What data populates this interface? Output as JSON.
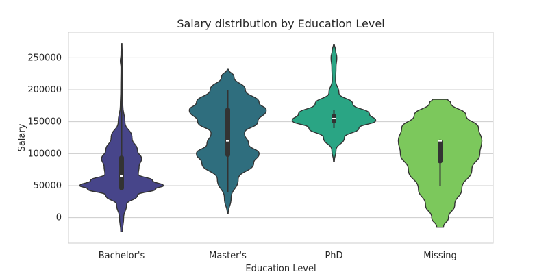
{
  "chart_data": {
    "type": "violin",
    "title": "Salary distribution by Education Level",
    "xlabel": "Education Level",
    "ylabel": "Salary",
    "ylim": [
      -40000,
      290000
    ],
    "yticks": [
      0,
      50000,
      100000,
      150000,
      200000,
      250000
    ],
    "ytick_labels": [
      "0",
      "50000",
      "100000",
      "150000",
      "200000",
      "250000"
    ],
    "grid": "horizontal",
    "categories": [
      "Bachelor's",
      "Master's",
      "PhD",
      "Missing"
    ],
    "colors": [
      "#47458a",
      "#2f6e7e",
      "#2aa584",
      "#7cc85c"
    ],
    "series": [
      {
        "name": "Bachelor's",
        "q1": 43000,
        "median": 65000,
        "q3": 97000,
        "whisker_low": 43000,
        "whisker_high": 272000,
        "min": -22000,
        "max": 272000,
        "density": [
          [
            -22000,
            0.02
          ],
          [
            0,
            0.05
          ],
          [
            20000,
            0.12
          ],
          [
            35000,
            0.38
          ],
          [
            45000,
            0.82
          ],
          [
            50000,
            1.0
          ],
          [
            58000,
            0.74
          ],
          [
            68000,
            0.4
          ],
          [
            80000,
            0.42
          ],
          [
            92000,
            0.48
          ],
          [
            105000,
            0.38
          ],
          [
            125000,
            0.25
          ],
          [
            150000,
            0.08
          ],
          [
            175000,
            0.03
          ],
          [
            200000,
            0.02
          ],
          [
            235000,
            0.015
          ],
          [
            245000,
            0.03
          ],
          [
            255000,
            0.015
          ],
          [
            272000,
            0.01
          ]
        ]
      },
      {
        "name": "Master's",
        "q1": 95000,
        "median": 120000,
        "q3": 172000,
        "whisker_low": 40000,
        "whisker_high": 200000,
        "min": 6000,
        "max": 233000,
        "density": [
          [
            6000,
            0.01
          ],
          [
            30000,
            0.08
          ],
          [
            60000,
            0.25
          ],
          [
            85000,
            0.62
          ],
          [
            100000,
            0.75
          ],
          [
            115000,
            0.5
          ],
          [
            132000,
            0.4
          ],
          [
            150000,
            0.72
          ],
          [
            168000,
            0.92
          ],
          [
            180000,
            0.75
          ],
          [
            200000,
            0.42
          ],
          [
            220000,
            0.15
          ],
          [
            233000,
            0.01
          ]
        ]
      },
      {
        "name": "PhD",
        "q1": 148000,
        "median": 155000,
        "q3": 162000,
        "whisker_low": 140000,
        "whisker_high": 168000,
        "min": 88000,
        "max": 271000,
        "density": [
          [
            88000,
            0.01
          ],
          [
            105000,
            0.05
          ],
          [
            125000,
            0.25
          ],
          [
            140000,
            0.6
          ],
          [
            152000,
            1.0
          ],
          [
            162000,
            0.85
          ],
          [
            178000,
            0.45
          ],
          [
            195000,
            0.12
          ],
          [
            215000,
            0.04
          ],
          [
            235000,
            0.05
          ],
          [
            250000,
            0.07
          ],
          [
            262000,
            0.04
          ],
          [
            271000,
            0.01
          ]
        ]
      },
      {
        "name": "Missing",
        "q1": 85000,
        "median": 120000,
        "q3": 122000,
        "whisker_low": 50000,
        "whisker_high": 122000,
        "min": -15000,
        "max": 185000,
        "density": [
          [
            -15000,
            0.08
          ],
          [
            0,
            0.2
          ],
          [
            20000,
            0.35
          ],
          [
            45000,
            0.52
          ],
          [
            75000,
            0.76
          ],
          [
            100000,
            0.95
          ],
          [
            120000,
            1.0
          ],
          [
            140000,
            0.92
          ],
          [
            160000,
            0.62
          ],
          [
            180000,
            0.25
          ],
          [
            185000,
            0.18
          ]
        ]
      }
    ]
  }
}
